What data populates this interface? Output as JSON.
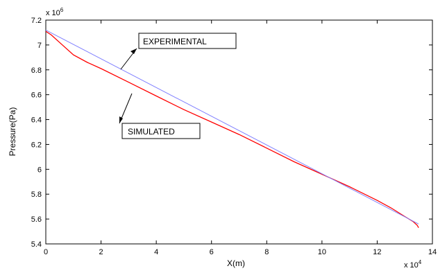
{
  "chart_data": {
    "type": "line",
    "title": "",
    "xlabel": "X(m)",
    "ylabel": "Pressure(Pa)",
    "x_exponent_label": "x 10",
    "x_exponent_power": "4",
    "y_exponent_label": "x 10",
    "y_exponent_power": "6",
    "xlim": [
      0,
      140000
    ],
    "ylim": [
      5400000,
      7200000
    ],
    "x_ticks": [
      0,
      20000,
      40000,
      60000,
      80000,
      100000,
      120000,
      140000
    ],
    "x_tick_labels": [
      "0",
      "2",
      "4",
      "6",
      "8",
      "10",
      "12",
      "14"
    ],
    "y_ticks": [
      5400000,
      5600000,
      5800000,
      6000000,
      6200000,
      6400000,
      6600000,
      6800000,
      7000000,
      7200000
    ],
    "y_tick_labels": [
      "5.4",
      "5.6",
      "5.8",
      "6",
      "6.2",
      "6.4",
      "6.6",
      "6.8",
      "7",
      "7.2"
    ],
    "grid": false,
    "series": [
      {
        "color": "#ff0000",
        "x": [
          0,
          2000,
          5000,
          10000,
          15000,
          20000,
          30000,
          40000,
          50000,
          60000,
          70000,
          80000,
          90000,
          100000,
          110000,
          120000,
          125000,
          130000,
          133000,
          134500,
          135000
        ],
        "values": [
          7110000,
          7080000,
          7020000,
          6920000,
          6860000,
          6810000,
          6700000,
          6590000,
          6480000,
          6380000,
          6280000,
          6170000,
          6060000,
          5960000,
          5860000,
          5750000,
          5690000,
          5620000,
          5580000,
          5550000,
          5530000
        ]
      },
      {
        "color": "#8080ff",
        "x": [
          0,
          135000
        ],
        "values": [
          7120000,
          5560000
        ]
      }
    ],
    "annotations": [
      {
        "text": "EXPERIMENTAL",
        "arrow_to": [
          27000,
          6720000
        ]
      },
      {
        "text": "SIMULATED",
        "arrow_to": [
          26000,
          6350000
        ]
      }
    ]
  }
}
